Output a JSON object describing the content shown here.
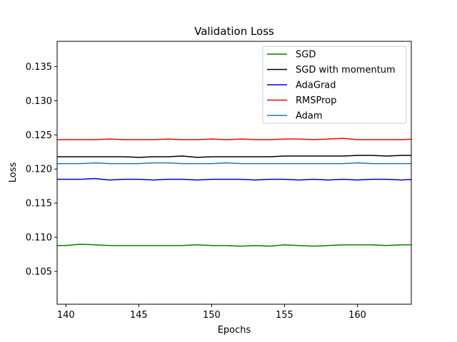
{
  "chart_data": {
    "type": "line",
    "title": "Validation Loss",
    "xlabel": "Epochs",
    "ylabel": "Loss",
    "xlim": [
      139.4,
      163.7
    ],
    "ylim": [
      0.1002,
      0.1387
    ],
    "xticks": [
      "140",
      "145",
      "150",
      "155",
      "160"
    ],
    "xtick_values": [
      140,
      145,
      150,
      155,
      160
    ],
    "yticks": [
      "0.105",
      "0.110",
      "0.115",
      "0.120",
      "0.125",
      "0.130",
      "0.135"
    ],
    "ytick_values": [
      0.105,
      0.11,
      0.115,
      0.12,
      0.125,
      0.13,
      0.135
    ],
    "grid": false,
    "legend": "top-right",
    "x": [
      139,
      140,
      141,
      142,
      143,
      144,
      145,
      146,
      147,
      148,
      149,
      150,
      151,
      152,
      153,
      154,
      155,
      156,
      157,
      158,
      159,
      160,
      161,
      162,
      163,
      164
    ],
    "series": [
      {
        "name": "SGD",
        "color": "#008000",
        "values": [
          0.1088,
          0.1088,
          0.109,
          0.1089,
          0.1088,
          0.1088,
          0.1088,
          0.1088,
          0.1088,
          0.1088,
          0.1089,
          0.1088,
          0.1088,
          0.1087,
          0.1088,
          0.1087,
          0.1089,
          0.1088,
          0.1087,
          0.1088,
          0.1089,
          0.1089,
          0.1089,
          0.1088,
          0.1089,
          0.1089
        ]
      },
      {
        "name": "SGD with momentum",
        "color": "#000000",
        "values": [
          0.1218,
          0.1218,
          0.1218,
          0.1218,
          0.1218,
          0.1218,
          0.1217,
          0.1218,
          0.1218,
          0.1219,
          0.1217,
          0.1218,
          0.1218,
          0.1218,
          0.1218,
          0.1218,
          0.1219,
          0.1219,
          0.1219,
          0.1219,
          0.1219,
          0.122,
          0.122,
          0.1219,
          0.122,
          0.122
        ]
      },
      {
        "name": "AdaGrad",
        "color": "#0000cc",
        "values": [
          0.1185,
          0.1185,
          0.1185,
          0.1186,
          0.1184,
          0.1185,
          0.1185,
          0.1184,
          0.1185,
          0.1185,
          0.1184,
          0.1185,
          0.1185,
          0.1185,
          0.1184,
          0.1185,
          0.1185,
          0.1184,
          0.1185,
          0.1184,
          0.1185,
          0.1184,
          0.1185,
          0.1185,
          0.1184,
          0.1185
        ]
      },
      {
        "name": "RMSProp",
        "color": "#ff0000",
        "values": [
          0.1243,
          0.1243,
          0.1243,
          0.1243,
          0.1244,
          0.1243,
          0.1243,
          0.1243,
          0.1244,
          0.1243,
          0.1243,
          0.1244,
          0.1243,
          0.1244,
          0.1243,
          0.1243,
          0.1244,
          0.1244,
          0.1243,
          0.1244,
          0.1245,
          0.1243,
          0.1243,
          0.1243,
          0.1243,
          0.1244
        ]
      },
      {
        "name": "Adam",
        "color": "#1f77b4",
        "values": [
          0.1208,
          0.1208,
          0.1208,
          0.1209,
          0.1208,
          0.1208,
          0.1208,
          0.1209,
          0.1209,
          0.1208,
          0.1208,
          0.1208,
          0.1209,
          0.1208,
          0.1208,
          0.1208,
          0.1208,
          0.1208,
          0.1208,
          0.1208,
          0.1208,
          0.1209,
          0.1208,
          0.1208,
          0.1208,
          0.1208
        ]
      }
    ]
  }
}
